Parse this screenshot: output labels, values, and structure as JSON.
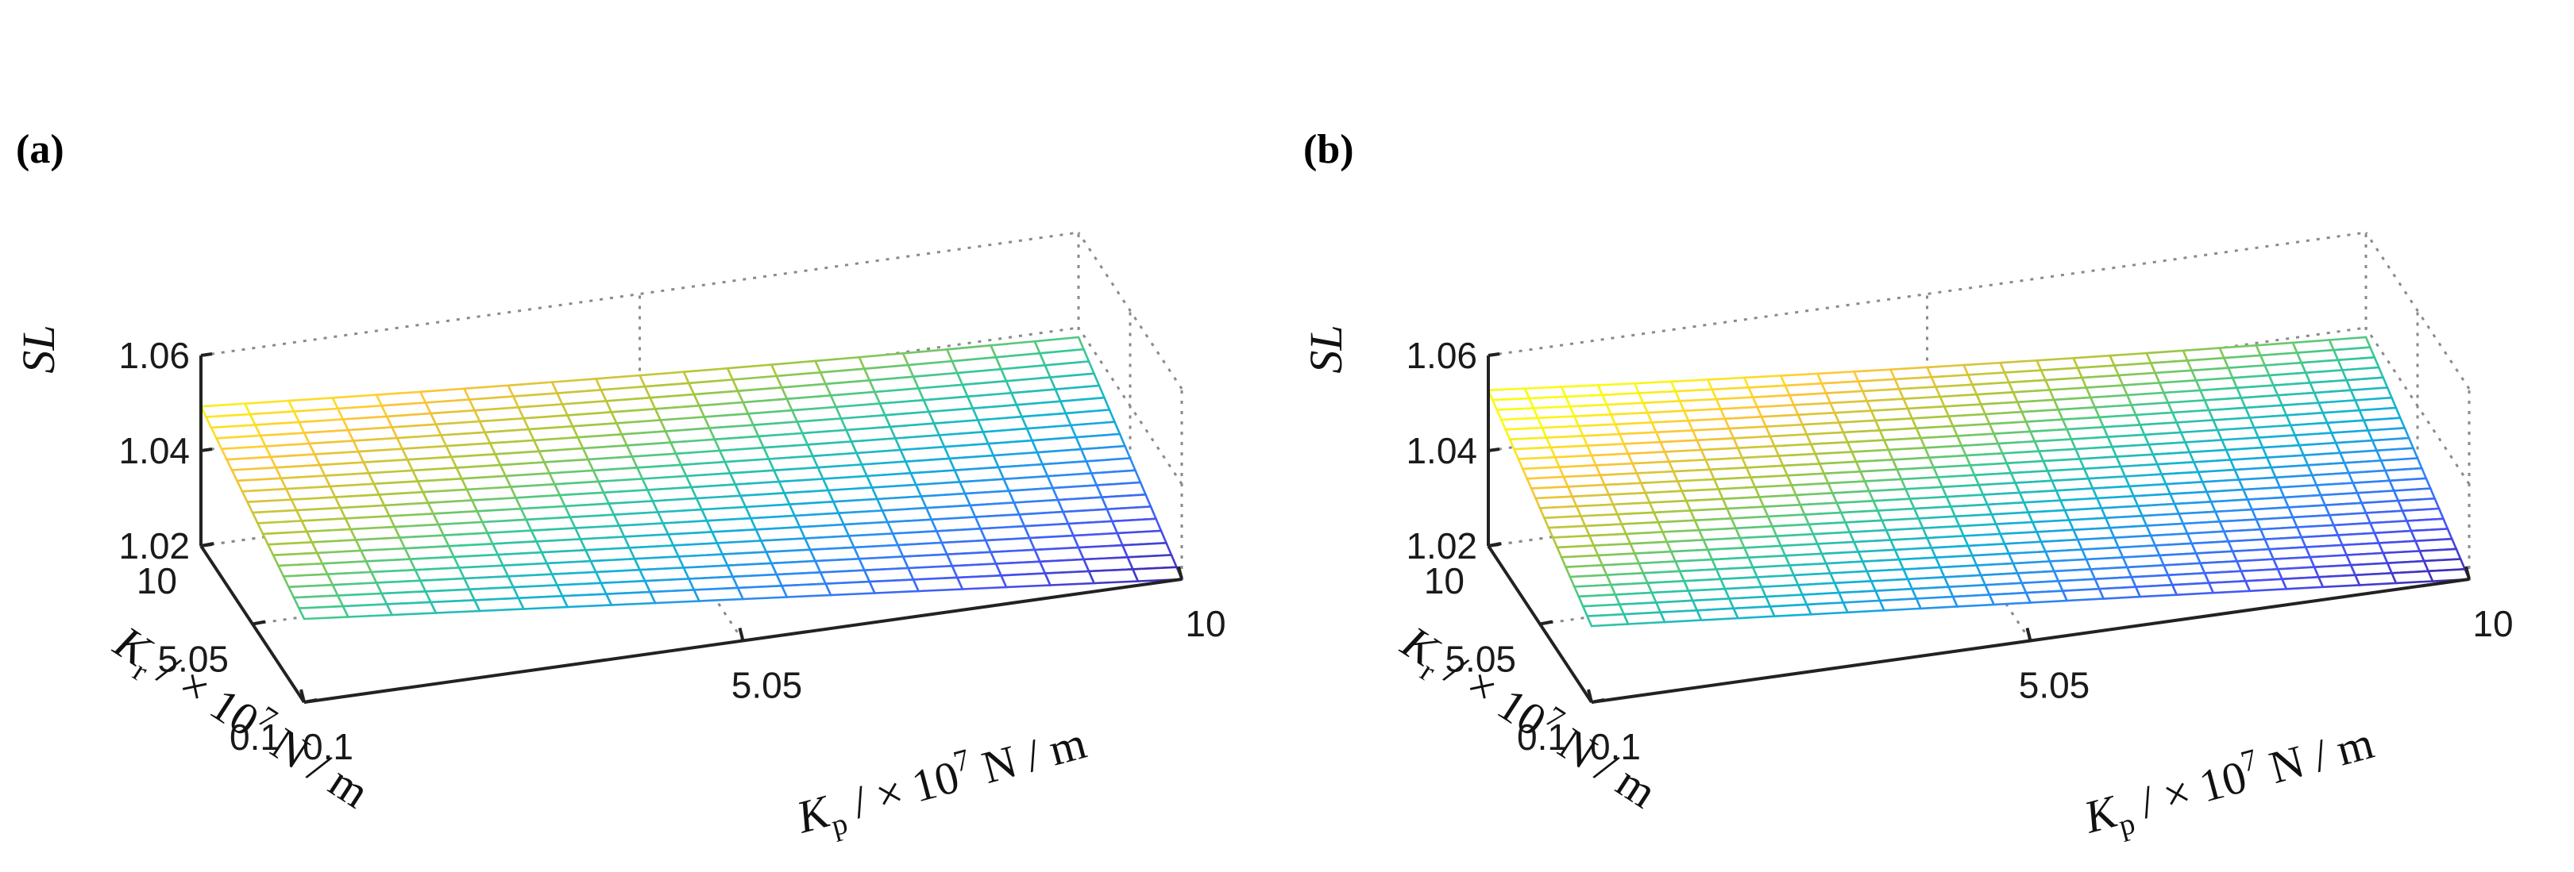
{
  "chart_data": [
    {
      "type": "surface",
      "panel_label": "(a)",
      "zlabel": "SL",
      "xlabel": {
        "symbol": "K",
        "sub": "p",
        "rest": " / × 10",
        "sup": "7",
        "unit": " N / m"
      },
      "ylabel": {
        "symbol": "K",
        "sub": "r",
        "rest": " / × 10",
        "sup": "7",
        "unit": " N / m"
      },
      "xlim": [
        0.1,
        10
      ],
      "ylim": [
        0.1,
        10
      ],
      "zlim": [
        1.02,
        1.06
      ],
      "x_ticks": [
        "0.1",
        "5.05",
        "10"
      ],
      "y_ticks": [
        "0.1",
        "5.05",
        "10"
      ],
      "z_ticks": [
        "1.02",
        "1.04",
        "1.06"
      ],
      "grid": true,
      "colormap": "parula",
      "grid_n": 21,
      "corners": {
        "kp_min_kr_min": 1.0375,
        "kp_max_kr_min": 1.02,
        "kp_min_kr_max": 1.0493,
        "kp_max_kr_max": 1.038
      }
    },
    {
      "type": "surface",
      "panel_label": "(b)",
      "zlabel": "SL",
      "xlabel": {
        "symbol": "K",
        "sub": "p",
        "rest": " / × 10",
        "sup": "7",
        "unit": " N / m"
      },
      "ylabel": {
        "symbol": "K",
        "sub": "r",
        "rest": " / × 10",
        "sup": "7",
        "unit": " N / m"
      },
      "xlim": [
        0.1,
        10
      ],
      "ylim": [
        0.1,
        10
      ],
      "zlim": [
        1.02,
        1.06
      ],
      "x_ticks": [
        "0.1",
        "5.05",
        "10"
      ],
      "y_ticks": [
        "0.1",
        "5.05",
        "10"
      ],
      "z_ticks": [
        "1.02",
        "1.04",
        "1.06"
      ],
      "grid": true,
      "colormap": "parula",
      "grid_n": 25,
      "corners": {
        "kp_min_kr_min": 1.036,
        "kp_max_kr_min": 1.02,
        "kp_min_kr_max": 1.0527,
        "kp_max_kr_max": 1.038
      }
    }
  ]
}
